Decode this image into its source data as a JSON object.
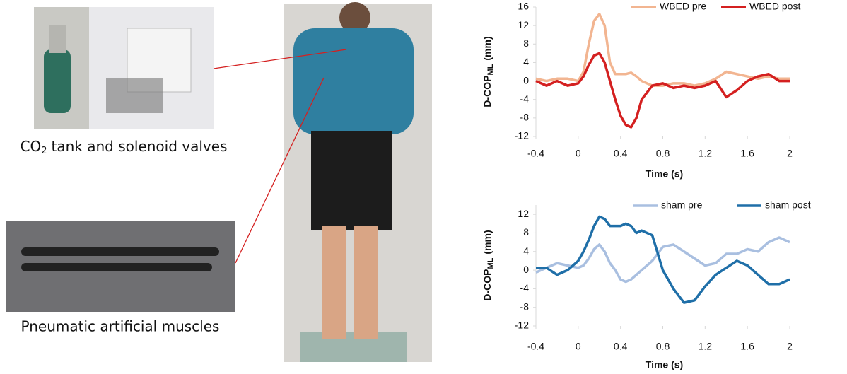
{
  "captions": {
    "valves": {
      "main": "CO",
      "sub": "2",
      "rest": "tank and solenoid valves"
    },
    "muscles": "Pneumatic artificial muscles"
  },
  "chart_data": [
    {
      "type": "line",
      "ylabel": {
        "main": "D-COP",
        "sub": "ML",
        "unit": "(mm)"
      },
      "xlabel": "Time (s)",
      "x": [
        -0.4,
        -0.3,
        -0.2,
        -0.1,
        0,
        0.05,
        0.1,
        0.15,
        0.2,
        0.25,
        0.3,
        0.35,
        0.4,
        0.45,
        0.5,
        0.55,
        0.6,
        0.7,
        0.8,
        0.9,
        1.0,
        1.1,
        1.2,
        1.3,
        1.4,
        1.5,
        1.6,
        1.7,
        1.8,
        1.9,
        2.0
      ],
      "series": [
        {
          "name": "WBED pre",
          "color": "#f2b591",
          "values": [
            0.5,
            0,
            0.5,
            0.5,
            0,
            2,
            8,
            13,
            14.5,
            12,
            4,
            1.5,
            1.5,
            1.5,
            1.8,
            1,
            0,
            -1,
            -1,
            -0.5,
            -0.5,
            -1,
            -0.5,
            0.5,
            2,
            1.5,
            1,
            0.5,
            1,
            0.5,
            0.5
          ]
        },
        {
          "name": "WBED post",
          "color": "#d42020",
          "values": [
            0,
            -1,
            0,
            -1,
            -0.5,
            1,
            3.5,
            5.5,
            6,
            4,
            0,
            -4,
            -7.5,
            -9.5,
            -10,
            -8,
            -4,
            -1,
            -0.5,
            -1.5,
            -1,
            -1.5,
            -1,
            0,
            -3.5,
            -2,
            0,
            1,
            1.5,
            0,
            0
          ]
        }
      ],
      "xlim": [
        -0.4,
        2
      ],
      "xticks": [
        -0.4,
        0,
        0.4,
        0.8,
        1.2,
        1.6,
        2
      ],
      "ylim": [
        -12,
        16
      ],
      "yticks": [
        -12,
        -8,
        -4,
        0,
        4,
        8,
        12,
        16
      ],
      "legend": "top"
    },
    {
      "type": "line",
      "ylabel": {
        "main": "D-COP",
        "sub": "ML",
        "unit": "(mm)"
      },
      "xlabel": "Time (s)",
      "x": [
        -0.4,
        -0.3,
        -0.2,
        -0.1,
        0,
        0.05,
        0.1,
        0.15,
        0.2,
        0.25,
        0.3,
        0.35,
        0.4,
        0.45,
        0.5,
        0.55,
        0.6,
        0.7,
        0.8,
        0.9,
        1.0,
        1.1,
        1.2,
        1.3,
        1.4,
        1.5,
        1.6,
        1.7,
        1.8,
        1.9,
        2.0
      ],
      "series": [
        {
          "name": "sham pre",
          "color": "#a9bfe0",
          "values": [
            -0.5,
            0.5,
            1.5,
            1,
            0.5,
            1,
            2.5,
            4.5,
            5.5,
            4,
            1.5,
            0,
            -2,
            -2.5,
            -2,
            -1,
            0,
            2,
            5,
            5.5,
            4,
            2.5,
            1,
            1.5,
            3.5,
            3.5,
            4.5,
            4,
            6,
            7,
            6
          ]
        },
        {
          "name": "sham post",
          "color": "#1f6fa8",
          "values": [
            0.5,
            0.5,
            -1,
            0,
            2,
            4,
            6.5,
            9.5,
            11.5,
            11,
            9.5,
            9.5,
            9.5,
            10,
            9.5,
            8,
            8.5,
            7.5,
            0,
            -4,
            -7,
            -6.5,
            -3.5,
            -1,
            0.5,
            2,
            1,
            -1,
            -3,
            -3,
            -2
          ]
        }
      ],
      "xlim": [
        -0.4,
        2
      ],
      "xticks": [
        -0.4,
        0,
        0.4,
        0.8,
        1.2,
        1.6,
        2
      ],
      "ylim": [
        -12,
        14
      ],
      "yticks": [
        -12,
        -8,
        -4,
        0,
        4,
        8,
        12
      ],
      "legend": "top"
    }
  ]
}
